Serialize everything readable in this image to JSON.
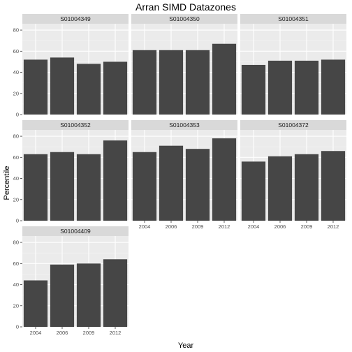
{
  "chart_data": {
    "type": "bar",
    "title": "Arran SIMD Datazones",
    "xlabel": "Year",
    "ylabel": "Percentile",
    "categories": [
      "2004",
      "2006",
      "2009",
      "2012"
    ],
    "ylim": [
      0,
      86
    ],
    "yticks": [
      0,
      20,
      40,
      60,
      80
    ],
    "grid": true,
    "legend": "none",
    "facet_columns": 3,
    "colors": {
      "bar": "#464646",
      "panel_background": "#ebebeb",
      "grid_major": "#ffffff",
      "strip_background": "#d9d9d9"
    },
    "panels": [
      {
        "name": "S01004349",
        "values": [
          52,
          54,
          48,
          50
        ]
      },
      {
        "name": "S01004350",
        "values": [
          61,
          61,
          61,
          67
        ]
      },
      {
        "name": "S01004351",
        "values": [
          47,
          51,
          51,
          52
        ]
      },
      {
        "name": "S01004352",
        "values": [
          63,
          65,
          63,
          76
        ]
      },
      {
        "name": "S01004353",
        "values": [
          65,
          71,
          68,
          78
        ]
      },
      {
        "name": "S01004372",
        "values": [
          56,
          61,
          63,
          66
        ]
      },
      {
        "name": "S01004409",
        "values": [
          44,
          59,
          60,
          64
        ]
      }
    ]
  }
}
